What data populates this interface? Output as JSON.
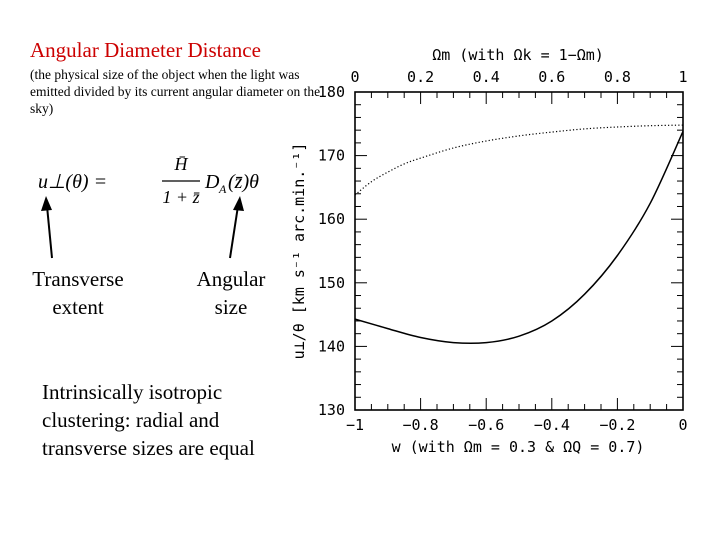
{
  "slide": {
    "title": "Angular Diameter Distance",
    "subtitle": "(the physical size of the object when the light was  emitted divided by its current angular diameter on the sky)",
    "formula": {
      "lhs": "u⊥(θ) =",
      "numerator": "H̄",
      "denominator": "1 + z̄",
      "rhs": "D",
      "rhs_sub": "A",
      "rhs_tail": "(z̄)θ"
    },
    "label_transverse": "Transverse extent",
    "label_angular": "Angular size",
    "body": "Intrinsically isotropic clustering: radial and transverse sizes are equal"
  },
  "chart_data": {
    "type": "line",
    "title": "",
    "top_axis_label": "Ωm  (with  Ωk = 1−Ωm)",
    "xlabel": "w  (with  Ωm = 0.3 & ΩQ = 0.7)",
    "ylabel": "u⊥/θ  [km s⁻¹ arc.min.⁻¹]",
    "xlim": [
      -1,
      0
    ],
    "ylim": [
      130,
      180
    ],
    "x_ticks": [
      -1,
      -0.8,
      -0.6,
      -0.4,
      -0.2,
      0
    ],
    "x_tick_labels": [
      "−1",
      "−0.8",
      "−0.6",
      "−0.4",
      "−0.2",
      "0"
    ],
    "top_lim": [
      0,
      1
    ],
    "top_ticks": [
      0,
      0.2,
      0.4,
      0.6,
      0.8,
      1
    ],
    "top_tick_labels": [
      "0",
      "0.2",
      "0.4",
      "0.6",
      "0.8",
      "1"
    ],
    "y_ticks": [
      130,
      140,
      150,
      160,
      170,
      180
    ],
    "y_tick_labels": [
      "130",
      "140",
      "150",
      "160",
      "170",
      "180"
    ],
    "series": [
      {
        "style": "solid",
        "axis": "bottom",
        "x": [
          -1,
          -0.9,
          -0.8,
          -0.7,
          -0.6,
          -0.5,
          -0.4,
          -0.3,
          -0.2,
          -0.1,
          0
        ],
        "values": [
          144.3,
          142.8,
          141.4,
          140.6,
          140.6,
          141.6,
          144.0,
          148.2,
          154.3,
          162.5,
          173.8
        ]
      },
      {
        "style": "dotted",
        "axis": "top",
        "x": [
          0,
          0.05,
          0.1,
          0.15,
          0.2,
          0.3,
          0.4,
          0.5,
          0.6,
          0.7,
          0.8,
          0.9,
          1
        ],
        "values": [
          163.8,
          165.9,
          167.4,
          168.7,
          169.6,
          171.2,
          172.3,
          173.1,
          173.7,
          174.2,
          174.5,
          174.7,
          174.8
        ]
      }
    ]
  }
}
